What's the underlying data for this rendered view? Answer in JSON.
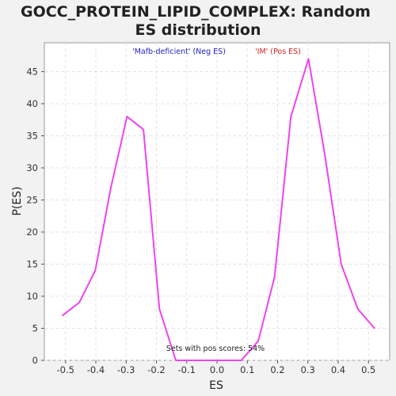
{
  "chart_data": {
    "type": "line",
    "title": "GOCC_PROTEIN_LIPID_COMPLEX: Random ES distribution",
    "title_lines": [
      "GOCC_PROTEIN_LIPID_COMPLEX: Random",
      "ES distribution"
    ],
    "xlabel": "ES",
    "ylabel": "P(ES)",
    "xlim": [
      -0.57,
      0.57
    ],
    "ylim": [
      0,
      49.5
    ],
    "x_ticks": [
      -0.5,
      -0.4,
      -0.3,
      -0.2,
      -0.1,
      0.0,
      0.1,
      0.2,
      0.3,
      0.4,
      0.5
    ],
    "x_tick_labels": [
      "-0.5",
      "-0.4",
      "-0.3",
      "-0.2",
      "-0.1",
      "0.0",
      "0.1",
      "0.2",
      "0.3",
      "0.4",
      "0.5"
    ],
    "y_ticks": [
      0,
      5,
      10,
      15,
      20,
      25,
      30,
      35,
      40,
      45
    ],
    "y_tick_labels": [
      "0",
      "5",
      "10",
      "15",
      "20",
      "25",
      "30",
      "35",
      "40",
      "45"
    ],
    "grid": true,
    "legend": [
      {
        "label": "'Mafb-deficient' (Neg ES)",
        "color": "#2222cc"
      },
      {
        "label": "'IM' (Pos ES)",
        "color": "#dd2222"
      }
    ],
    "annotation": "Sets with pos scores: 54%",
    "line_color": "#ee44ee",
    "series": [
      {
        "x": [
          -0.51,
          -0.455,
          -0.402,
          -0.35,
          -0.297,
          -0.243,
          -0.19,
          -0.136,
          -0.082,
          -0.028,
          0.025,
          0.08,
          0.136,
          0.19,
          0.244,
          0.302,
          0.356,
          0.41,
          0.465,
          0.52
        ],
        "values": [
          7,
          9,
          14,
          27,
          38,
          36,
          8,
          0,
          0,
          0,
          0,
          0,
          3,
          13,
          38,
          47,
          32,
          15,
          8,
          5
        ]
      }
    ]
  }
}
